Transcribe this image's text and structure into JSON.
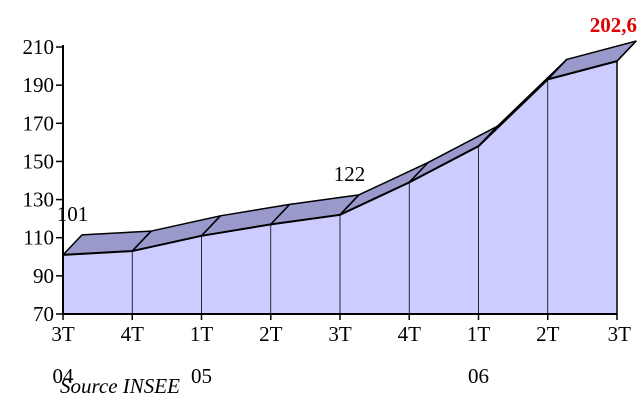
{
  "chart_data": {
    "type": "area",
    "title": "",
    "xlabel": "",
    "ylabel": "",
    "ylim": [
      70,
      210
    ],
    "yticks": [
      70,
      90,
      110,
      130,
      150,
      170,
      190,
      210
    ],
    "categories": [
      "3T",
      "4T",
      "1T",
      "2T",
      "3T",
      "4T",
      "1T",
      "2T",
      "3T"
    ],
    "year_labels": [
      "04",
      "",
      "05",
      "",
      "",
      "",
      "06",
      "",
      ""
    ],
    "series": [
      {
        "values": [
          101,
          103,
          111,
          117,
          122,
          139,
          158,
          193,
          202.6
        ]
      }
    ],
    "data_labels": [
      {
        "index": 0,
        "text": "101"
      },
      {
        "index": 4,
        "text": "122"
      },
      {
        "index": 8,
        "text": "202,6"
      }
    ],
    "style": "3d-ribbon",
    "colors": {
      "fill": "#ccccff",
      "top": "#9999cc",
      "line": "#000000",
      "highlight": "#e00000"
    },
    "grid": false,
    "legend": "none"
  },
  "source": "Source INSEE"
}
